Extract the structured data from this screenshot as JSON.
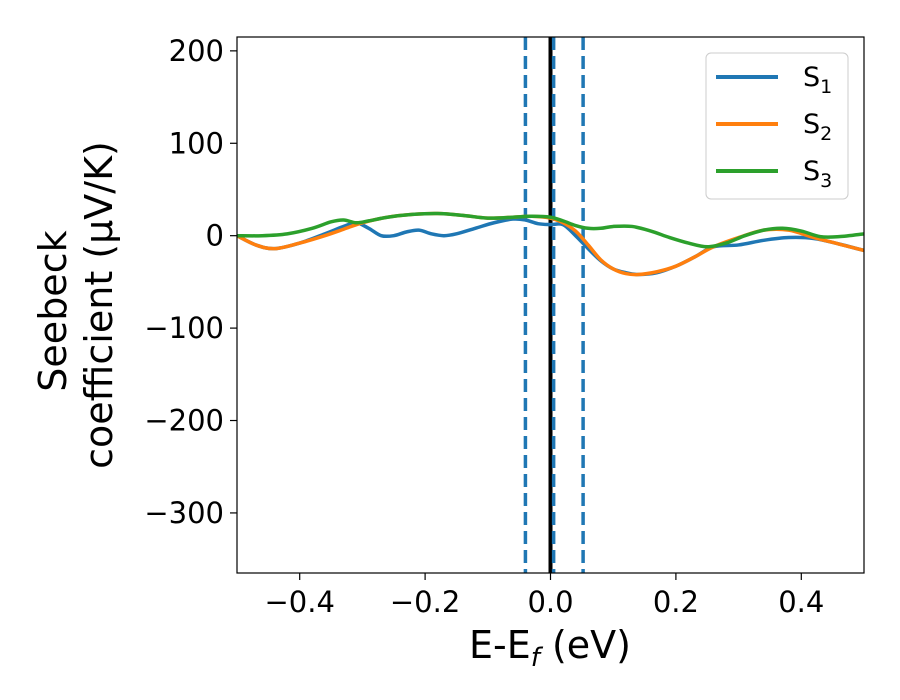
{
  "chart_data": {
    "type": "line",
    "xlabel": "E-E",
    "xlabel_sub": "f",
    "xlabel_unit": " (eV)",
    "ylabel_line1": "Seebeck",
    "ylabel_line2": "coefficient  (μV/K)",
    "xlim": [
      -0.5,
      0.5
    ],
    "ylim": [
      -365,
      215
    ],
    "xticks": [
      -0.4,
      -0.2,
      0.0,
      0.2,
      0.4
    ],
    "xtick_labels": [
      "−0.4",
      "−0.2",
      "0.0",
      "0.2",
      "0.4"
    ],
    "yticks": [
      200,
      100,
      0,
      -100,
      -200,
      -300
    ],
    "ytick_labels": [
      "200",
      "100",
      "0",
      "−100",
      "−200",
      "−300"
    ],
    "grid": false,
    "legend_position": "top-right",
    "legend": [
      {
        "base": "S",
        "sub": "1"
      },
      {
        "base": "S",
        "sub": "2"
      },
      {
        "base": "S",
        "sub": "3"
      }
    ],
    "vlines": [
      {
        "x": 0.0,
        "style": "solid",
        "color": "#000000"
      },
      {
        "x": -0.04,
        "style": "dashed",
        "color": "#1f77b4"
      },
      {
        "x": 0.005,
        "style": "dashed",
        "color": "#1f77b4"
      },
      {
        "x": 0.052,
        "style": "dashed",
        "color": "#1f77b4"
      }
    ],
    "series": [
      {
        "name": "S1",
        "color": "#1f77b4",
        "x": [
          -0.5,
          -0.47,
          -0.44,
          -0.4,
          -0.36,
          -0.33,
          -0.31,
          -0.29,
          -0.27,
          -0.25,
          -0.23,
          -0.21,
          -0.19,
          -0.17,
          -0.15,
          -0.12,
          -0.09,
          -0.06,
          -0.04,
          -0.02,
          0.0,
          0.02,
          0.04,
          0.06,
          0.08,
          0.1,
          0.12,
          0.14,
          0.17,
          0.2,
          0.23,
          0.26,
          0.3,
          0.34,
          0.38,
          0.42,
          0.46,
          0.5
        ],
        "y": [
          0,
          -10,
          -14,
          -8,
          2,
          10,
          14,
          8,
          0,
          0,
          4,
          6,
          2,
          0,
          2,
          8,
          14,
          18,
          17,
          13,
          12,
          12,
          0,
          -14,
          -27,
          -36,
          -40,
          -42,
          -40,
          -33,
          -23,
          -12,
          -10,
          -5,
          -2,
          -3,
          -9,
          -16
        ]
      },
      {
        "name": "S2",
        "color": "#ff7f0e",
        "x": [
          -0.5,
          -0.47,
          -0.44,
          -0.4,
          -0.36,
          -0.33,
          -0.3,
          -0.26,
          -0.22,
          -0.18,
          -0.14,
          -0.1,
          -0.06,
          -0.03,
          0.0,
          0.02,
          0.04,
          0.06,
          0.08,
          0.1,
          0.12,
          0.14,
          0.17,
          0.2,
          0.23,
          0.26,
          0.3,
          0.34,
          0.38,
          0.42,
          0.46,
          0.5
        ],
        "y": [
          0,
          -10,
          -14,
          -8,
          0,
          7,
          14,
          20,
          23,
          24,
          22,
          19,
          20,
          21,
          19,
          14,
          5,
          -10,
          -26,
          -36,
          -41,
          -42,
          -39,
          -33,
          -23,
          -12,
          -2,
          6,
          6,
          -2,
          -9,
          -16
        ]
      },
      {
        "name": "S3",
        "color": "#2ca02c",
        "x": [
          -0.5,
          -0.46,
          -0.42,
          -0.38,
          -0.35,
          -0.33,
          -0.31,
          -0.29,
          -0.26,
          -0.22,
          -0.18,
          -0.14,
          -0.1,
          -0.06,
          -0.03,
          0.0,
          0.02,
          0.04,
          0.06,
          0.08,
          0.1,
          0.13,
          0.16,
          0.19,
          0.22,
          0.25,
          0.28,
          0.31,
          0.34,
          0.37,
          0.4,
          0.43,
          0.46,
          0.5
        ],
        "y": [
          0,
          0,
          2,
          8,
          15,
          17,
          14,
          16,
          20,
          23,
          24,
          22,
          19,
          20,
          21,
          20,
          16,
          11,
          8,
          8,
          10,
          10,
          5,
          -2,
          -8,
          -12,
          -8,
          0,
          6,
          8,
          5,
          -1,
          -1,
          2
        ]
      }
    ]
  }
}
